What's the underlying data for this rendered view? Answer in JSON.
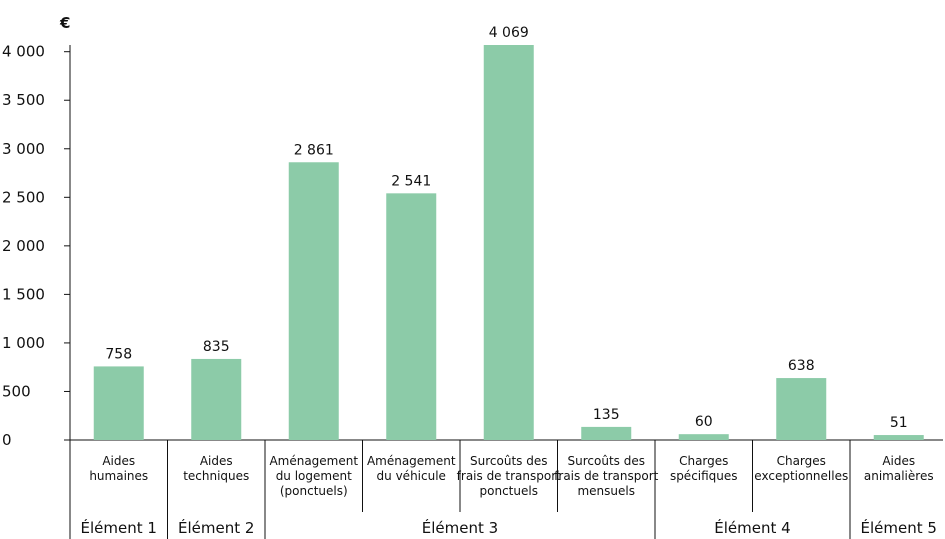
{
  "chart_data": {
    "type": "bar",
    "unit": "€",
    "categories": [
      [
        "Aides",
        "humaines"
      ],
      [
        "Aides",
        "techniques"
      ],
      [
        "Aménagement",
        "du logement",
        "(ponctuels)"
      ],
      [
        "Aménagement",
        "du véhicule"
      ],
      [
        "Surcoûts des",
        "frais de transport",
        "ponctuels"
      ],
      [
        "Surcoûts des",
        "frais de transport",
        "mensuels"
      ],
      [
        "Charges",
        "spécifiques"
      ],
      [
        "Charges",
        "exceptionnelles"
      ],
      [
        "Aides",
        "animalières"
      ]
    ],
    "values": [
      758,
      835,
      2861,
      2541,
      4069,
      135,
      60,
      638,
      51
    ],
    "value_labels": [
      "758",
      "835",
      "2 861",
      "2 541",
      "4 069",
      "135",
      "60",
      "638",
      "51"
    ],
    "ylim": [
      0,
      4069
    ],
    "yticks": [
      0,
      500,
      1000,
      1500,
      2000,
      2500,
      3000,
      3500,
      4000
    ],
    "ytick_labels": [
      "0",
      "500",
      "1 000",
      "1 500",
      "2 000",
      "2 500",
      "3 000",
      "3 500",
      "4 000"
    ],
    "groups": [
      {
        "label": "Élément 1",
        "first": 0,
        "last": 0
      },
      {
        "label": "Élément 2",
        "first": 1,
        "last": 1
      },
      {
        "label": "Élément 3",
        "first": 2,
        "last": 5
      },
      {
        "label": "Élément 4",
        "first": 6,
        "last": 7
      },
      {
        "label": "Élément 5",
        "first": 8,
        "last": 8
      }
    ],
    "bar_color": "#8ccba8",
    "grid": false,
    "legend": "none"
  }
}
